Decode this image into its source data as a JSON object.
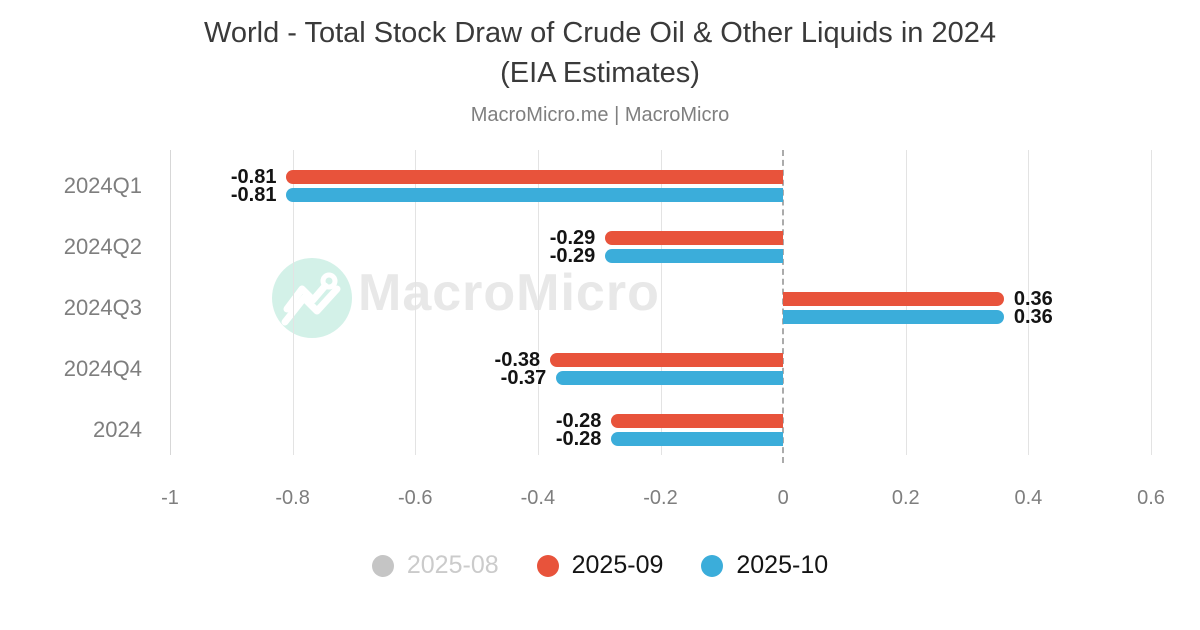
{
  "header": {
    "title_line1": "World - Total Stock Draw of Crude Oil & Other Liquids in 2024",
    "title_line2": "(EIA Estimates)",
    "subtitle": "MacroMicro.me | MacroMicro"
  },
  "watermark": {
    "brand": "MacroMicro"
  },
  "colors": {
    "red": "#e8533b",
    "blue": "#3badda",
    "gray": "#c5c5c5",
    "grid": "#e3e3e3",
    "zero_line": "#ababab",
    "axis_text": "#7e7e7e",
    "value_text": "#141414",
    "legend_disabled_text": "#cbcbcb",
    "watermark_circle": "#d3f1e8",
    "watermark_text": "#e8e8e8"
  },
  "chart_data": {
    "type": "bar",
    "orientation": "horizontal",
    "title": "World - Total Stock Draw of Crude Oil & Other Liquids in 2024 (EIA Estimates)",
    "subtitle": "MacroMicro.me | MacroMicro",
    "categories": [
      "2024Q1",
      "2024Q2",
      "2024Q3",
      "2024Q4",
      "2024"
    ],
    "series": [
      {
        "name": "2025-08",
        "color_key": "gray",
        "disabled": true,
        "values": [],
        "labels": []
      },
      {
        "name": "2025-09",
        "color_key": "red",
        "disabled": false,
        "values": [
          -0.81,
          -0.29,
          0.36,
          -0.38,
          -0.28
        ],
        "labels": [
          "-0.81",
          "-0.29",
          "0.36",
          "-0.38",
          "-0.28"
        ]
      },
      {
        "name": "2025-10",
        "color_key": "blue",
        "disabled": false,
        "values": [
          -0.81,
          -0.29,
          0.36,
          -0.37,
          -0.28
        ],
        "labels": [
          "-0.81",
          "-0.29",
          "0.36",
          "-0.37",
          "-0.28"
        ]
      }
    ],
    "x_ticks": [
      -1,
      -0.8,
      -0.6,
      -0.4,
      -0.2,
      0,
      0.2,
      0.4,
      0.6
    ],
    "x_tick_labels": [
      "-1",
      "-0.8",
      "-0.6",
      "-0.4",
      "-0.2",
      "0",
      "0.2",
      "0.4",
      "0.6"
    ],
    "xlim": [
      -1,
      0.6
    ],
    "grid": true,
    "legend_position": "bottom"
  }
}
